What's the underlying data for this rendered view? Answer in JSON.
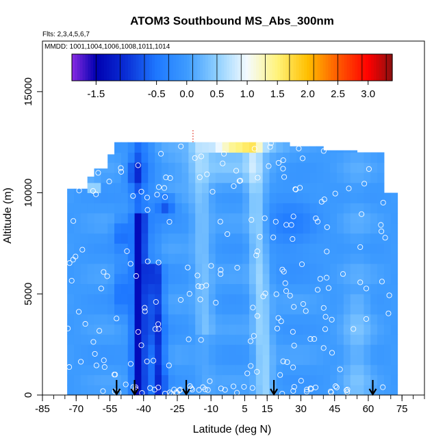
{
  "chart_data": {
    "type": "heatmap",
    "title": "ATOM3 Southbound MS_Abs_300nm",
    "flights_note": "Flts: 2,3,4,5,6,7",
    "dates_note": "MMDD: 1001,1004,1006,1008,1011,1014",
    "xlabel": "Latitude (deg N)",
    "ylabel": "Altitude (m)",
    "xlim": [
      -85,
      85
    ],
    "ylim": [
      0,
      17500
    ],
    "x_ticks": [
      -85,
      -70,
      -55,
      -40,
      -25,
      -10,
      5,
      15,
      30,
      45,
      60,
      75
    ],
    "x_tick_labels": [
      "-85",
      "-70",
      "-55",
      "-40",
      "-25",
      "-10",
      "5",
      "15",
      "30",
      "45",
      "60",
      "75"
    ],
    "y_ticks": [
      0,
      5000,
      10000,
      15000
    ],
    "y_tick_labels": [
      "0",
      "5000",
      "10000",
      "15000"
    ],
    "colorbar": {
      "range": [
        -1.9,
        3.4
      ],
      "tick_values": [
        -1.5,
        -0.5,
        0.0,
        0.5,
        1.0,
        1.5,
        2.0,
        2.5,
        3.0
      ],
      "tick_labels": [
        "-1.5",
        "-0.5",
        "0.0",
        "0.5",
        "1.0",
        "1.5",
        "2.0",
        "2.5",
        "3.0"
      ],
      "stops": [
        {
          "value": -1.9,
          "color": "#8a2be2"
        },
        {
          "value": -1.5,
          "color": "#0000b0"
        },
        {
          "value": -1.0,
          "color": "#0a2fd6"
        },
        {
          "value": -0.5,
          "color": "#1e78ff"
        },
        {
          "value": 0.0,
          "color": "#3d9bff"
        },
        {
          "value": 0.5,
          "color": "#8fd0ff"
        },
        {
          "value": 1.0,
          "color": "#f4fbff"
        },
        {
          "value": 1.5,
          "color": "#fff37a"
        },
        {
          "value": 2.0,
          "color": "#ffbf00"
        },
        {
          "value": 2.5,
          "color": "#ff5a00"
        },
        {
          "value": 3.0,
          "color": "#ff0000"
        },
        {
          "value": 3.4,
          "color": "#8b1010"
        }
      ]
    },
    "arrow_latitudes": [
      -52,
      -44,
      -21,
      18,
      62
    ],
    "outline_color": "#e03020"
  }
}
